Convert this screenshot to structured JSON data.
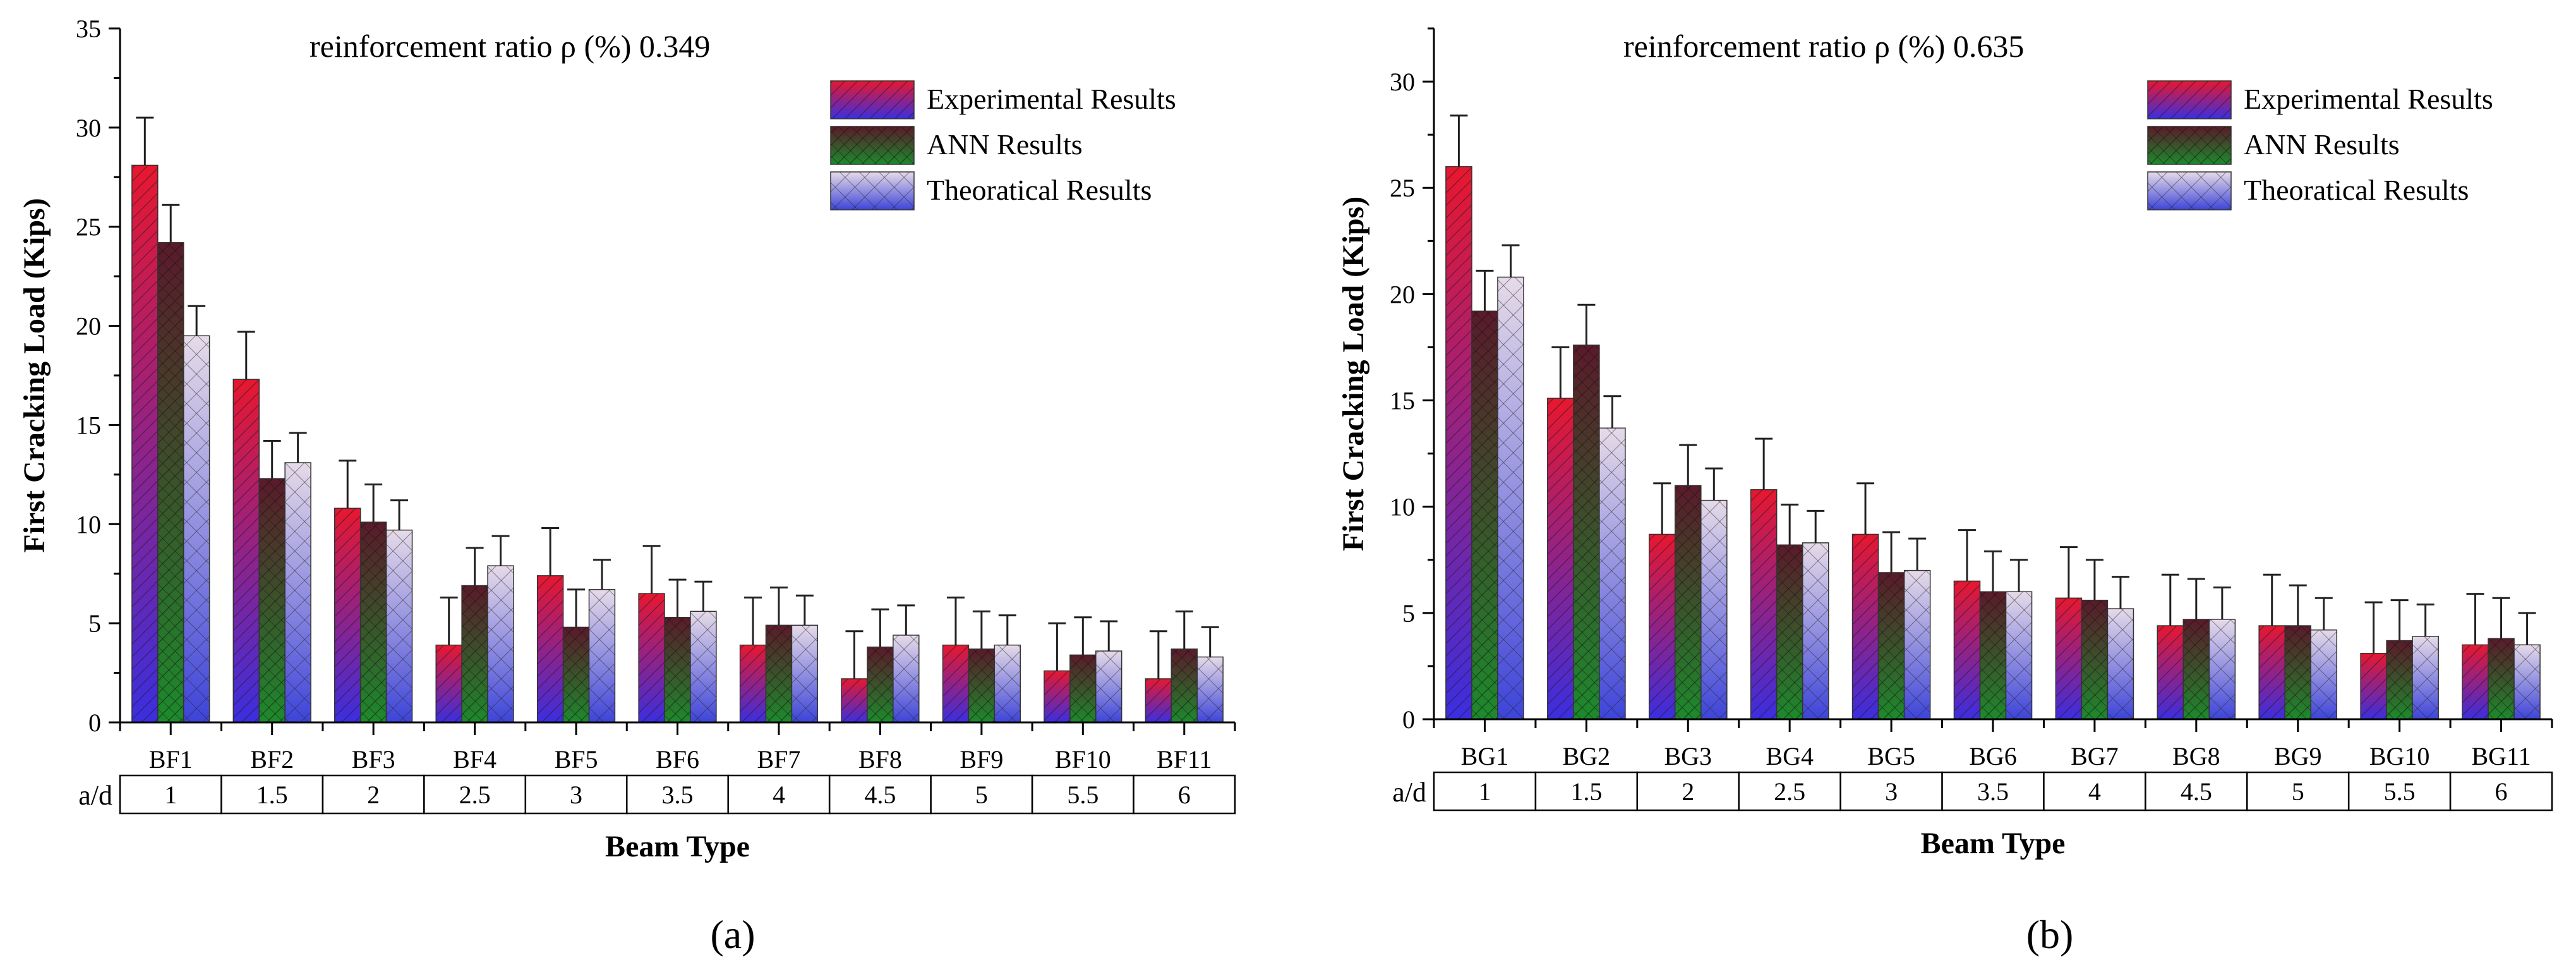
{
  "colors": {
    "experimental_top": "#e8172f",
    "experimental_bottom": "#3b2ee0",
    "ann_top": "#5a1a2a",
    "ann_bottom": "#1d8a2c",
    "theoretical_top": "#e6dbe8",
    "theoretical_bottom": "#3d44d8"
  },
  "chart_data": [
    {
      "type": "bar",
      "panel_label": "(a)",
      "title": "reinforcement ratio ρ (%) 0.349",
      "xlabel": "Beam Type",
      "ylabel": "First Cracking Load (Kips)",
      "ylim": [
        0,
        35
      ],
      "yticks": [
        "0",
        "5",
        "10",
        "15",
        "20",
        "25",
        "30",
        "35"
      ],
      "categories": [
        "BF1",
        "BF2",
        "BF3",
        "BF4",
        "BF5",
        "BF6",
        "BF7",
        "BF8",
        "BF9",
        "BF10",
        "BF11"
      ],
      "ad_label": "a/d",
      "ad_values": [
        "1",
        "1.5",
        "2",
        "2.5",
        "3",
        "3.5",
        "4",
        "4.5",
        "5",
        "5.5",
        "6"
      ],
      "legend_position": "top-right",
      "series": [
        {
          "name": "Experimental Results",
          "values": [
            28.1,
            17.3,
            10.8,
            3.9,
            7.4,
            6.5,
            3.9,
            2.2,
            3.9,
            2.6,
            2.2
          ],
          "errors": [
            2.4,
            2.4,
            2.4,
            2.4,
            2.4,
            2.4,
            2.4,
            2.4,
            2.4,
            2.4,
            2.4
          ]
        },
        {
          "name": "ANN Results",
          "values": [
            24.2,
            12.3,
            10.1,
            6.9,
            4.8,
            5.3,
            4.9,
            3.8,
            3.7,
            3.4,
            3.7
          ],
          "errors": [
            1.9,
            1.9,
            1.9,
            1.9,
            1.9,
            1.9,
            1.9,
            1.9,
            1.9,
            1.9,
            1.9
          ]
        },
        {
          "name": "Theoratical Results",
          "values": [
            19.5,
            13.1,
            9.7,
            7.9,
            6.7,
            5.6,
            4.9,
            4.4,
            3.9,
            3.6,
            3.3
          ],
          "errors": [
            1.5,
            1.5,
            1.5,
            1.5,
            1.5,
            1.5,
            1.5,
            1.5,
            1.5,
            1.5,
            1.5
          ]
        }
      ]
    },
    {
      "type": "bar",
      "panel_label": "(b)",
      "title": "reinforcement ratio ρ (%) 0.635",
      "xlabel": "Beam Type",
      "ylabel": "First Cracking Load (Kips)",
      "ylim": [
        0,
        32.5
      ],
      "yticks": [
        "0",
        "5",
        "10",
        "15",
        "20",
        "25",
        "30"
      ],
      "categories": [
        "BG1",
        "BG2",
        "BG3",
        "BG4",
        "BG5",
        "BG6",
        "BG7",
        "BG8",
        "BG9",
        "BG10",
        "BG11"
      ],
      "ad_label": "a/d",
      "ad_values": [
        "1",
        "1.5",
        "2",
        "2.5",
        "3",
        "3.5",
        "4",
        "4.5",
        "5",
        "5.5",
        "6"
      ],
      "legend_position": "top-right",
      "series": [
        {
          "name": "Experimental Results",
          "values": [
            26.0,
            15.1,
            8.7,
            10.8,
            8.7,
            6.5,
            5.7,
            4.4,
            4.4,
            3.1,
            3.5
          ],
          "errors": [
            2.4,
            2.4,
            2.4,
            2.4,
            2.4,
            2.4,
            2.4,
            2.4,
            2.4,
            2.4,
            2.4
          ]
        },
        {
          "name": "ANN Results",
          "values": [
            19.2,
            17.6,
            11.0,
            8.2,
            6.9,
            6.0,
            5.6,
            4.7,
            4.4,
            3.7,
            3.8
          ],
          "errors": [
            1.9,
            1.9,
            1.9,
            1.9,
            1.9,
            1.9,
            1.9,
            1.9,
            1.9,
            1.9,
            1.9
          ]
        },
        {
          "name": "Theoratical Results",
          "values": [
            20.8,
            13.7,
            10.3,
            8.3,
            7.0,
            6.0,
            5.2,
            4.7,
            4.2,
            3.9,
            3.5
          ],
          "errors": [
            1.5,
            1.5,
            1.5,
            1.5,
            1.5,
            1.5,
            1.5,
            1.5,
            1.5,
            1.5,
            1.5
          ]
        }
      ]
    }
  ]
}
